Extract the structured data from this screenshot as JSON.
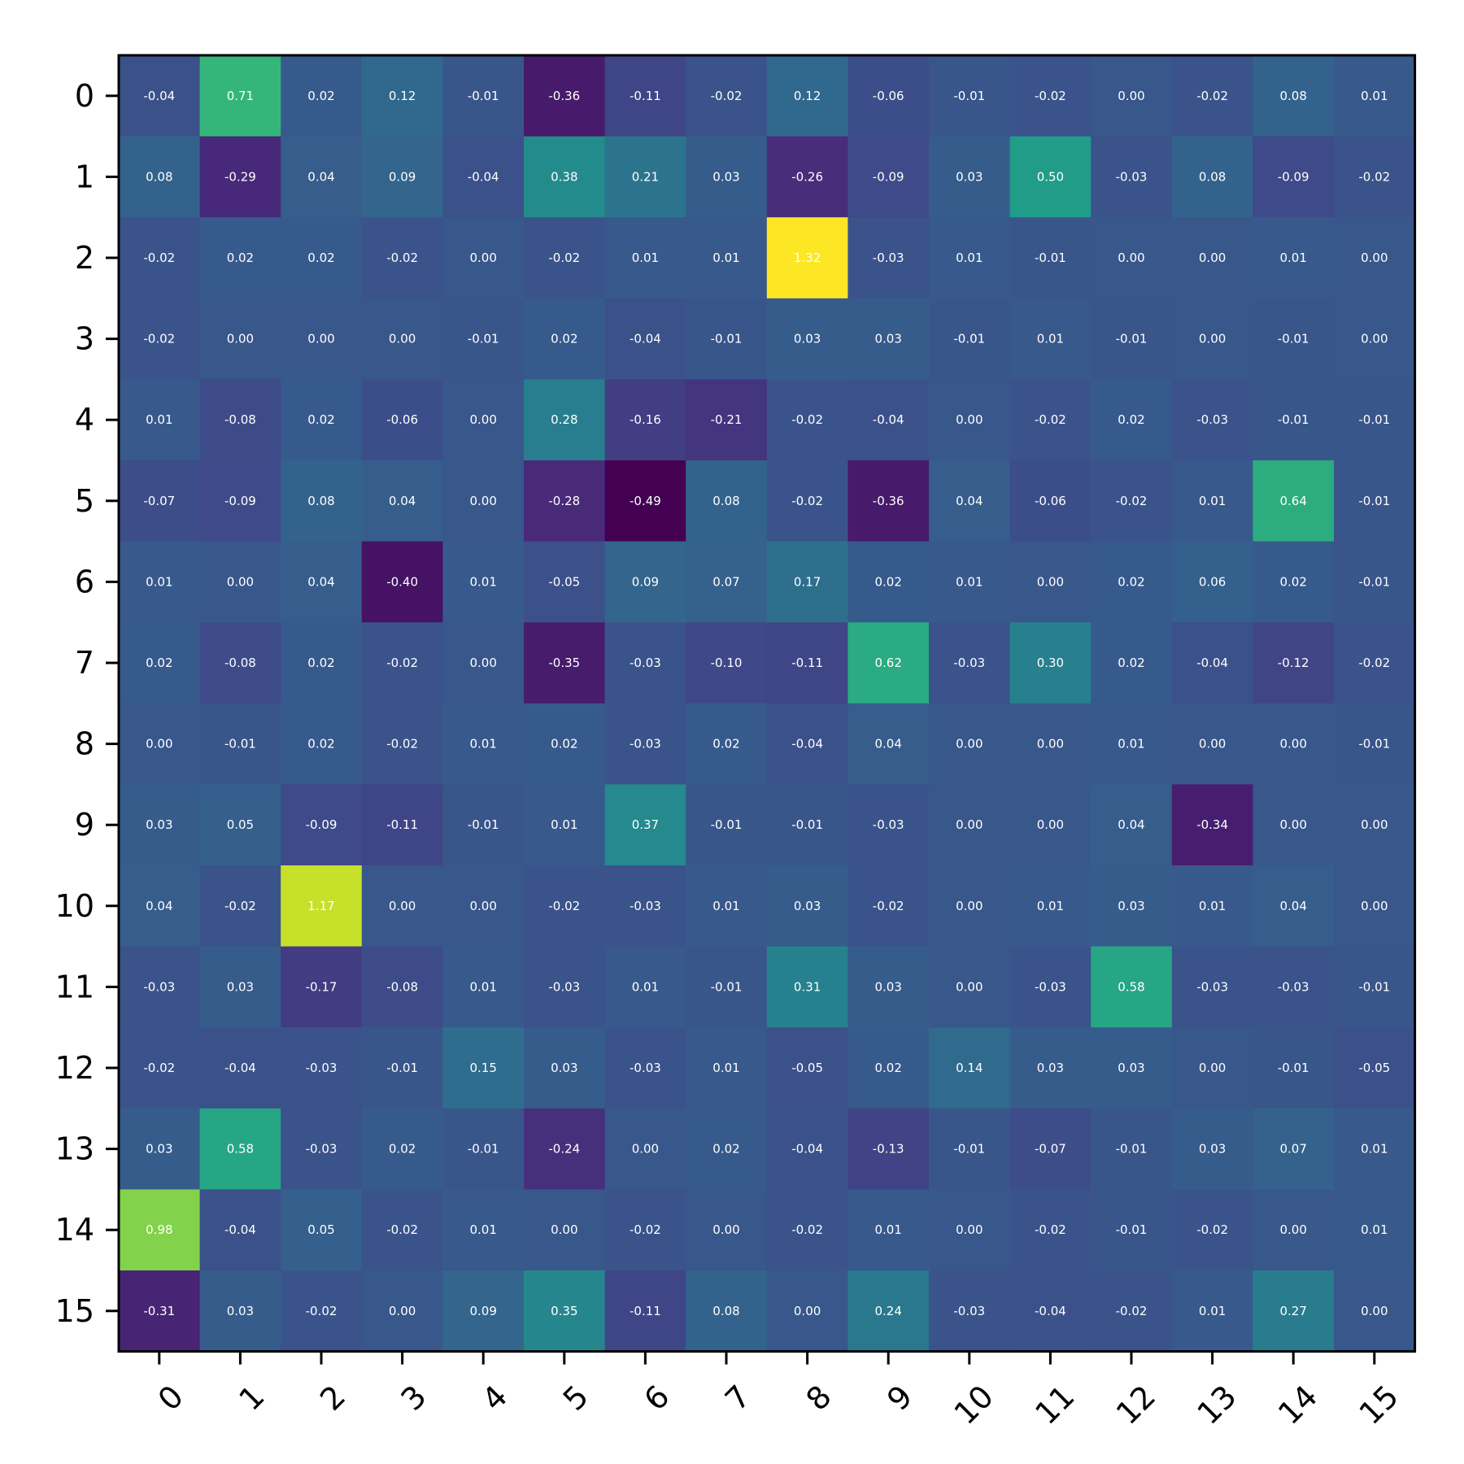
{
  "chart_data": {
    "type": "heatmap",
    "title": "",
    "xlabel": "",
    "ylabel": "",
    "x_tick_labels": [
      "0",
      "1",
      "2",
      "3",
      "4",
      "5",
      "6",
      "7",
      "8",
      "9",
      "10",
      "11",
      "12",
      "13",
      "14",
      "15"
    ],
    "y_tick_labels": [
      "0",
      "1",
      "2",
      "3",
      "4",
      "5",
      "6",
      "7",
      "8",
      "9",
      "10",
      "11",
      "12",
      "13",
      "14",
      "15"
    ],
    "colormap": "viridis",
    "vmin": -0.49,
    "vmax": 1.32,
    "cell_text_color": "#ffffff",
    "values": [
      [
        -0.04,
        0.71,
        0.02,
        0.12,
        -0.01,
        -0.36,
        -0.11,
        -0.02,
        0.12,
        -0.06,
        -0.01,
        -0.02,
        -0.0,
        -0.02,
        0.08,
        0.01
      ],
      [
        0.08,
        -0.29,
        0.04,
        0.09,
        -0.04,
        0.38,
        0.21,
        0.03,
        -0.26,
        -0.09,
        0.03,
        0.5,
        -0.03,
        0.08,
        -0.09,
        -0.02
      ],
      [
        -0.02,
        0.02,
        0.02,
        -0.02,
        0.0,
        -0.02,
        0.01,
        0.01,
        1.32,
        -0.03,
        0.01,
        -0.01,
        0.0,
        0.0,
        0.01,
        0.0
      ],
      [
        -0.02,
        -0.0,
        0.0,
        -0.0,
        -0.01,
        0.02,
        -0.04,
        -0.01,
        0.03,
        0.03,
        -0.01,
        0.01,
        -0.01,
        0.0,
        -0.01,
        -0.0
      ],
      [
        0.01,
        -0.08,
        0.02,
        -0.06,
        0.0,
        0.28,
        -0.16,
        -0.21,
        -0.02,
        -0.04,
        0.0,
        -0.02,
        0.02,
        -0.03,
        -0.01,
        -0.01
      ],
      [
        -0.07,
        -0.09,
        0.08,
        0.04,
        -0.0,
        -0.28,
        -0.49,
        0.08,
        -0.02,
        -0.36,
        0.04,
        -0.06,
        -0.02,
        0.01,
        0.64,
        -0.01
      ],
      [
        0.01,
        0.0,
        0.04,
        -0.4,
        0.01,
        -0.05,
        0.09,
        0.07,
        0.17,
        0.02,
        0.01,
        -0.0,
        0.02,
        0.06,
        0.02,
        -0.01
      ],
      [
        0.02,
        -0.08,
        0.02,
        -0.02,
        0.0,
        -0.35,
        -0.03,
        -0.1,
        -0.11,
        0.62,
        -0.03,
        0.3,
        0.02,
        -0.04,
        -0.12,
        -0.02
      ],
      [
        -0.0,
        -0.01,
        0.02,
        -0.02,
        0.01,
        0.02,
        -0.03,
        0.02,
        -0.04,
        0.04,
        0.0,
        0.0,
        0.01,
        -0.0,
        0.0,
        -0.01
      ],
      [
        0.03,
        0.05,
        -0.09,
        -0.11,
        -0.01,
        0.01,
        0.37,
        -0.01,
        -0.01,
        -0.03,
        -0.0,
        0.0,
        0.04,
        -0.34,
        -0.0,
        -0.0
      ],
      [
        0.04,
        -0.02,
        1.17,
        -0.0,
        -0.0,
        -0.02,
        -0.03,
        0.01,
        0.03,
        -0.02,
        0.0,
        0.01,
        0.03,
        0.01,
        0.04,
        0.0
      ],
      [
        -0.03,
        0.03,
        -0.17,
        -0.08,
        0.01,
        -0.03,
        0.01,
        -0.01,
        0.31,
        0.03,
        0.0,
        -0.03,
        0.58,
        -0.03,
        -0.03,
        -0.01
      ],
      [
        -0.02,
        -0.04,
        -0.03,
        -0.01,
        0.15,
        0.03,
        -0.03,
        0.01,
        -0.05,
        0.02,
        0.14,
        0.03,
        0.03,
        0.0,
        -0.01,
        -0.05
      ],
      [
        0.03,
        0.58,
        -0.03,
        0.02,
        -0.01,
        -0.24,
        -0.0,
        0.02,
        -0.04,
        -0.13,
        -0.01,
        -0.07,
        -0.01,
        0.03,
        0.07,
        0.01
      ],
      [
        0.98,
        -0.04,
        0.05,
        -0.02,
        0.01,
        0.0,
        -0.02,
        0.0,
        -0.02,
        0.01,
        0.0,
        -0.02,
        -0.01,
        -0.02,
        -0.0,
        0.01
      ],
      [
        -0.31,
        0.03,
        -0.02,
        -0.0,
        0.09,
        0.35,
        -0.11,
        0.08,
        0.0,
        0.24,
        -0.03,
        -0.04,
        -0.02,
        0.01,
        0.27,
        -0.0
      ]
    ]
  }
}
